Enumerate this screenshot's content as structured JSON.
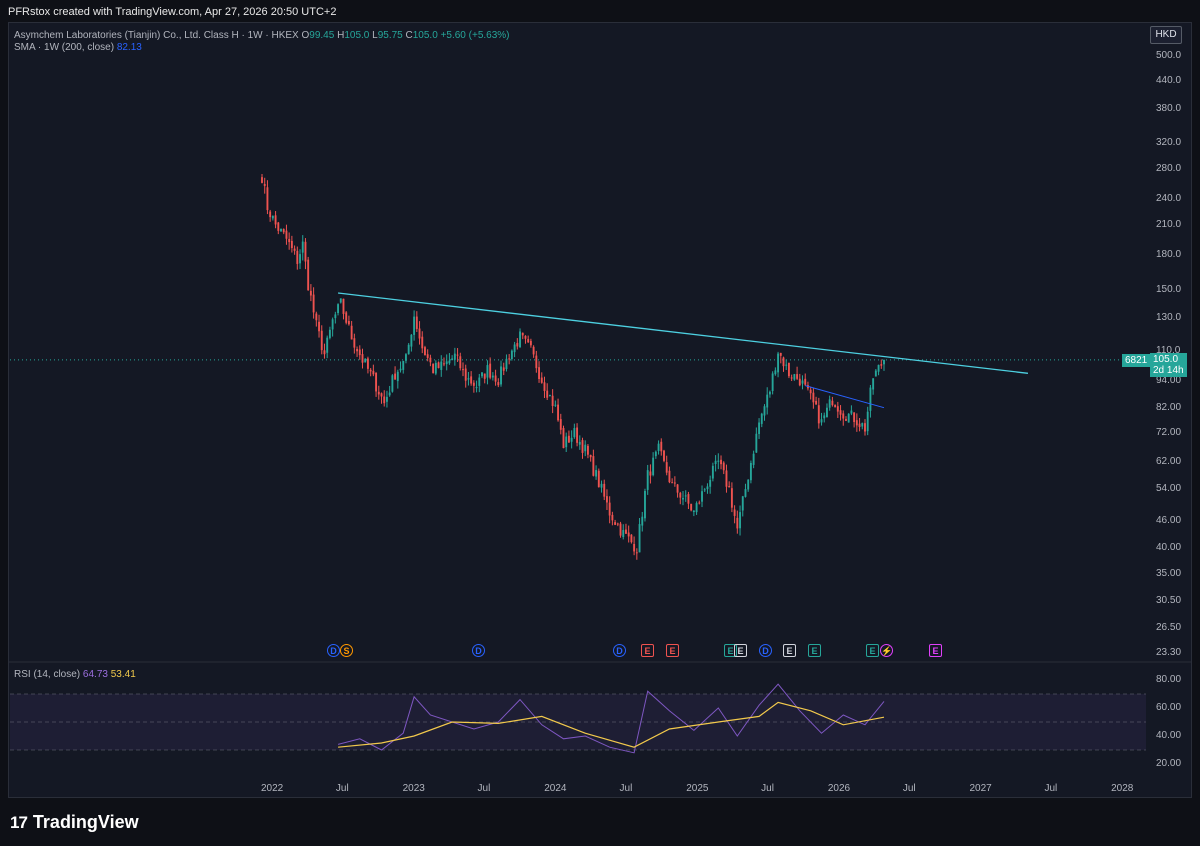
{
  "header": {
    "attribution": "PFRstox created with TradingView.com, Apr 27, 2026 20:50 UTC+2"
  },
  "legend": {
    "symbol": "Asymchem Laboratories (Tianjin) Co., Ltd. Class H · 1W · HKEX",
    "open_label": "O",
    "open": "99.45",
    "high_label": "H",
    "high": "105.0",
    "low_label": "L",
    "low": "95.75",
    "close_label": "C",
    "close": "105.0",
    "change": "+5.60 (+5.63%)",
    "sma_label": "SMA · 1W (200, close)",
    "sma_value": "82.13",
    "rsi_label": "RSI (14, close)",
    "rsi_value": "64.73",
    "rsi_ma_value": "53.41"
  },
  "currency": "HKD",
  "last_price": {
    "code": "6821",
    "price": "105.0",
    "countdown": "2d 14h"
  },
  "price_axis": [
    "500.0",
    "440.0",
    "380.0",
    "320.0",
    "280.0",
    "240.0",
    "210.0",
    "180.0",
    "150.0",
    "130.0",
    "110.0",
    "94.00",
    "82.00",
    "72.00",
    "62.00",
    "54.00",
    "46.00",
    "40.00",
    "35.00",
    "30.50",
    "26.50",
    "23.30"
  ],
  "rsi_axis": [
    "80.00",
    "60.00",
    "40.00",
    "20.00"
  ],
  "time_axis": [
    "2022",
    "Jul",
    "2023",
    "Jul",
    "2024",
    "Jul",
    "2025",
    "Jul",
    "2026",
    "Jul",
    "2027",
    "Jul",
    "2028"
  ],
  "events": [
    {
      "icon": "dividend-icon",
      "letter": "D",
      "color": "#2962ff",
      "shape": "circle"
    },
    {
      "icon": "split-icon",
      "letter": "S",
      "color": "#ff9800",
      "shape": "circle"
    },
    {
      "icon": "dividend-icon",
      "letter": "D",
      "color": "#2962ff",
      "shape": "circle"
    },
    {
      "icon": "dividend-icon",
      "letter": "D",
      "color": "#2962ff",
      "shape": "circle"
    },
    {
      "icon": "earnings-icon",
      "letter": "E",
      "color": "#ef5350",
      "shape": "square"
    },
    {
      "icon": "earnings-icon",
      "letter": "E",
      "color": "#ef5350",
      "shape": "square"
    },
    {
      "icon": "earnings-icon",
      "letter": "E",
      "color": "#26a69a",
      "shape": "square"
    },
    {
      "icon": "earnings-icon",
      "letter": "E",
      "color": "#d1d4dc",
      "shape": "square"
    },
    {
      "icon": "dividend-icon",
      "letter": "D",
      "color": "#2962ff",
      "shape": "circle"
    },
    {
      "icon": "earnings-icon",
      "letter": "E",
      "color": "#d1d4dc",
      "shape": "square"
    },
    {
      "icon": "earnings-icon",
      "letter": "E",
      "color": "#26a69a",
      "shape": "square"
    },
    {
      "icon": "earnings-icon",
      "letter": "E",
      "color": "#26a69a",
      "shape": "square"
    },
    {
      "icon": "flash-icon",
      "letter": "⚡",
      "color": "#e040fb",
      "shape": "circle"
    },
    {
      "icon": "earnings-icon",
      "letter": "E",
      "color": "#e040fb",
      "shape": "square"
    }
  ],
  "colors": {
    "up": "#26a69a",
    "down": "#ef5350",
    "trendline": "#4dd0e1",
    "sma": "#2962ff",
    "rsi": "#7e57c2",
    "rsi_ma": "#f2c94c"
  },
  "footer": {
    "brand": "TradingView"
  },
  "chart_data": {
    "type": "candlestick",
    "scale": "log",
    "currency": "HKD",
    "interval": "1W",
    "y_range": [
      23.3,
      500
    ],
    "weekly_close_path": [
      [
        "2021-12-06",
        270
      ],
      [
        "2021-12-20",
        230
      ],
      [
        "2022-01-10",
        210
      ],
      [
        "2022-02-07",
        195
      ],
      [
        "2022-03-07",
        175
      ],
      [
        "2022-03-21",
        190
      ],
      [
        "2022-04-04",
        155
      ],
      [
        "2022-04-25",
        125
      ],
      [
        "2022-05-16",
        108
      ],
      [
        "2022-06-06",
        128
      ],
      [
        "2022-06-27",
        140
      ],
      [
        "2022-07-25",
        118
      ],
      [
        "2022-08-22",
        105
      ],
      [
        "2022-09-19",
        95
      ],
      [
        "2022-10-17",
        84
      ],
      [
        "2022-11-14",
        98
      ],
      [
        "2022-12-12",
        105
      ],
      [
        "2023-01-02",
        132
      ],
      [
        "2023-01-23",
        112
      ],
      [
        "2023-02-20",
        100
      ],
      [
        "2023-03-20",
        102
      ],
      [
        "2023-04-17",
        107
      ],
      [
        "2023-05-15",
        96
      ],
      [
        "2023-06-12",
        92
      ],
      [
        "2023-07-10",
        100
      ],
      [
        "2023-08-07",
        95
      ],
      [
        "2023-09-04",
        108
      ],
      [
        "2023-10-02",
        118
      ],
      [
        "2023-10-30",
        110
      ],
      [
        "2023-11-27",
        95
      ],
      [
        "2024-01-01",
        82
      ],
      [
        "2024-01-22",
        68
      ],
      [
        "2024-02-19",
        72
      ],
      [
        "2024-03-18",
        66
      ],
      [
        "2024-04-15",
        58
      ],
      [
        "2024-05-20",
        48
      ],
      [
        "2024-06-24",
        43
      ],
      [
        "2024-07-29",
        40
      ],
      [
        "2024-08-26",
        58
      ],
      [
        "2024-09-23",
        66
      ],
      [
        "2024-10-28",
        55
      ],
      [
        "2024-11-25",
        52
      ],
      [
        "2024-12-23",
        48
      ],
      [
        "2025-01-27",
        56
      ],
      [
        "2025-02-24",
        62
      ],
      [
        "2025-03-24",
        54
      ],
      [
        "2025-04-14",
        44
      ],
      [
        "2025-05-12",
        58
      ],
      [
        "2025-06-09",
        76
      ],
      [
        "2025-07-07",
        90
      ],
      [
        "2025-07-28",
        110
      ],
      [
        "2025-08-25",
        98
      ],
      [
        "2025-09-22",
        95
      ],
      [
        "2025-10-20",
        86
      ],
      [
        "2025-11-17",
        76
      ],
      [
        "2025-12-15",
        86
      ],
      [
        "2026-01-12",
        80
      ],
      [
        "2026-02-09",
        78
      ],
      [
        "2026-03-09",
        74
      ],
      [
        "2026-03-30",
        96
      ],
      [
        "2026-04-27",
        105
      ]
    ],
    "trendline": [
      [
        "2022-06-20",
        148
      ],
      [
        "2027-05-03",
        98
      ]
    ],
    "sma_200": [
      [
        "2025-10-06",
        92
      ],
      [
        "2026-04-27",
        82.13
      ]
    ],
    "rsi": {
      "length": 14,
      "last": 64.73,
      "ma_last": 53.41,
      "bands": [
        30,
        50,
        70
      ],
      "y_range": [
        15,
        85
      ],
      "values": [
        [
          "2022-06-20",
          34
        ],
        [
          "2022-08-15",
          38
        ],
        [
          "2022-10-10",
          30
        ],
        [
          "2022-12-05",
          42
        ],
        [
          "2023-01-02",
          68
        ],
        [
          "2023-02-13",
          55
        ],
        [
          "2023-04-10",
          50
        ],
        [
          "2023-06-05",
          45
        ],
        [
          "2023-08-07",
          50
        ],
        [
          "2023-10-02",
          66
        ],
        [
          "2023-11-27",
          48
        ],
        [
          "2024-01-22",
          38
        ],
        [
          "2024-03-18",
          40
        ],
        [
          "2024-05-20",
          32
        ],
        [
          "2024-07-22",
          28
        ],
        [
          "2024-08-26",
          72
        ],
        [
          "2024-10-21",
          58
        ],
        [
          "2024-12-23",
          44
        ],
        [
          "2025-02-24",
          60
        ],
        [
          "2025-04-14",
          40
        ],
        [
          "2025-06-09",
          62
        ],
        [
          "2025-07-28",
          77
        ],
        [
          "2025-09-22",
          58
        ],
        [
          "2025-11-17",
          42
        ],
        [
          "2026-01-12",
          55
        ],
        [
          "2026-03-09",
          48
        ],
        [
          "2026-04-27",
          64.73
        ]
      ],
      "ma": [
        [
          "2022-06-20",
          32
        ],
        [
          "2022-10-10",
          35
        ],
        [
          "2023-01-02",
          40
        ],
        [
          "2023-04-10",
          50
        ],
        [
          "2023-08-07",
          49
        ],
        [
          "2023-11-27",
          54
        ],
        [
          "2024-03-18",
          42
        ],
        [
          "2024-07-22",
          32
        ],
        [
          "2024-10-21",
          45
        ],
        [
          "2025-02-24",
          50
        ],
        [
          "2025-06-09",
          54
        ],
        [
          "2025-07-28",
          64
        ],
        [
          "2025-10-20",
          58
        ],
        [
          "2026-01-12",
          48
        ],
        [
          "2026-04-27",
          53.41
        ]
      ]
    }
  }
}
